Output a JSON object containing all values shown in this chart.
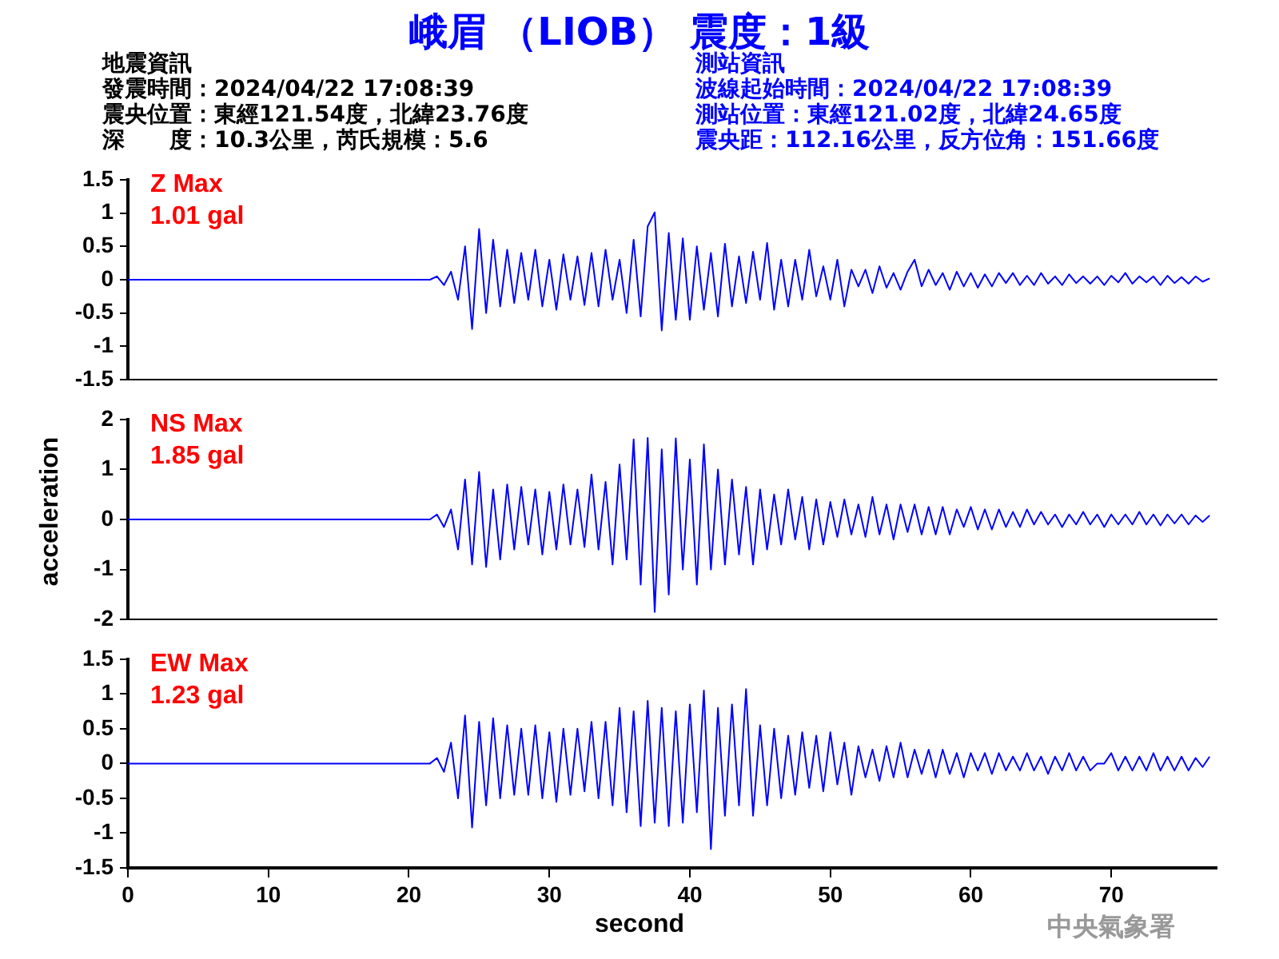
{
  "chart_data": [
    {
      "type": "line",
      "title": "峨眉 （LIOB） 震度：1級",
      "annotations": [
        "地震資訊",
        "發震時間：2024/04/22 17:08:39",
        "震央位置：東經121.54度，北緯23.76度",
        "深　　度：10.3公里，芮氏規模：5.6",
        "測站資訊",
        "波線起始時間：2024/04/22 17:08:39",
        "測站位置：東經121.02度，北緯24.65度",
        "震央距：112.16公里，反方位角：151.66度",
        "Z Max",
        "1.01 gal"
      ],
      "x": [
        0,
        21.5,
        22,
        22.5,
        23,
        23.5,
        24,
        24.5,
        25,
        25.5,
        26,
        26.5,
        27,
        27.5,
        28,
        28.5,
        29,
        29.5,
        30,
        30.5,
        31,
        31.5,
        32,
        32.5,
        33,
        33.5,
        34,
        34.5,
        35,
        35.5,
        36,
        36.5,
        37,
        37.5,
        38,
        38.5,
        39,
        39.5,
        40,
        40.5,
        41,
        41.5,
        42,
        42.5,
        43,
        43.5,
        44,
        44.5,
        45,
        45.5,
        46,
        46.5,
        47,
        47.5,
        48,
        48.5,
        49,
        49.5,
        50,
        50.5,
        51,
        51.5,
        52,
        52.5,
        53,
        53.5,
        54,
        54.5,
        55,
        55.5,
        56,
        56.5,
        57,
        57.5,
        58,
        58.5,
        59,
        59.5,
        60,
        60.5,
        61,
        61.5,
        62,
        62.5,
        63,
        63.5,
        64,
        64.5,
        65,
        65.5,
        66,
        66.5,
        67,
        67.5,
        68,
        68.5,
        69,
        69.5,
        70,
        70.5,
        71,
        71.5,
        72,
        72.5,
        73,
        73.5,
        74,
        74.5,
        75,
        75.5,
        76,
        76.5,
        77
      ],
      "values": [
        0,
        0,
        0.05,
        -0.08,
        0.12,
        -0.3,
        0.5,
        -0.74,
        0.76,
        -0.5,
        0.6,
        -0.4,
        0.45,
        -0.35,
        0.4,
        -0.3,
        0.45,
        -0.4,
        0.3,
        -0.45,
        0.38,
        -0.3,
        0.35,
        -0.38,
        0.4,
        -0.4,
        0.45,
        -0.3,
        0.3,
        -0.5,
        0.6,
        -0.55,
        0.8,
        1.01,
        -0.76,
        0.7,
        -0.6,
        0.62,
        -0.6,
        0.5,
        -0.45,
        0.4,
        -0.55,
        0.54,
        -0.4,
        0.35,
        -0.35,
        0.42,
        -0.3,
        0.55,
        -0.45,
        0.3,
        -0.4,
        0.3,
        -0.3,
        0.45,
        -0.25,
        0.2,
        -0.3,
        0.3,
        -0.4,
        0.15,
        -0.1,
        0.15,
        -0.2,
        0.2,
        -0.12,
        0.1,
        -0.15,
        0.12,
        0.3,
        -0.1,
        0.15,
        -0.08,
        0.1,
        -0.15,
        0.12,
        -0.1,
        0.1,
        -0.12,
        0.08,
        -0.1,
        0.1,
        -0.05,
        0.1,
        -0.08,
        0.06,
        -0.08,
        0.1,
        -0.06,
        0.05,
        -0.08,
        0.08,
        -0.05,
        0.05,
        -0.06,
        0.05,
        -0.08,
        0.06,
        -0.04,
        0.1,
        -0.06,
        0.05,
        -0.04,
        0.05,
        -0.08,
        0.06,
        -0.05,
        0.04,
        -0.06,
        0.05,
        -0.03,
        0.02
      ],
      "color": "#0000ff",
      "xlim": [
        0,
        77.5
      ],
      "xticks": [
        0,
        10,
        20,
        30,
        40,
        50,
        60,
        70
      ],
      "ylim": [
        -1.5,
        1.5
      ],
      "yticks": [
        -1.5,
        -1,
        -0.5,
        0,
        0.5,
        1,
        1.5
      ],
      "tick_labels": "y"
    },
    {
      "type": "line",
      "ylabel": "acceleration",
      "annotations": [
        "NS Max",
        "1.85 gal"
      ],
      "x": [
        0,
        21.5,
        22,
        22.5,
        23,
        23.5,
        24,
        24.5,
        25,
        25.5,
        26,
        26.5,
        27,
        27.5,
        28,
        28.5,
        29,
        29.5,
        30,
        30.5,
        31,
        31.5,
        32,
        32.5,
        33,
        33.5,
        34,
        34.5,
        35,
        35.5,
        36,
        36.5,
        37,
        37.5,
        38,
        38.5,
        39,
        39.5,
        40,
        40.5,
        41,
        41.5,
        42,
        42.5,
        43,
        43.5,
        44,
        44.5,
        45,
        45.5,
        46,
        46.5,
        47,
        47.5,
        48,
        48.5,
        49,
        49.5,
        50,
        50.5,
        51,
        51.5,
        52,
        52.5,
        53,
        53.5,
        54,
        54.5,
        55,
        55.5,
        56,
        56.5,
        57,
        57.5,
        58,
        58.5,
        59,
        59.5,
        60,
        60.5,
        61,
        61.5,
        62,
        62.5,
        63,
        63.5,
        64,
        64.5,
        65,
        65.5,
        66,
        66.5,
        67,
        67.5,
        68,
        68.5,
        69,
        69.5,
        70,
        70.5,
        71,
        71.5,
        72,
        72.5,
        73,
        73.5,
        74,
        74.5,
        75,
        75.5,
        76,
        76.5,
        77
      ],
      "values": [
        0,
        0,
        0.1,
        -0.15,
        0.2,
        -0.6,
        0.8,
        -0.9,
        0.95,
        -0.95,
        0.6,
        -0.8,
        0.7,
        -0.6,
        0.65,
        -0.5,
        0.6,
        -0.7,
        0.55,
        -0.6,
        0.7,
        -0.5,
        0.6,
        -0.55,
        0.9,
        -0.6,
        0.75,
        -0.9,
        1.1,
        -0.8,
        1.6,
        -1.3,
        1.63,
        -1.85,
        1.4,
        -1.5,
        1.62,
        -1,
        1.2,
        -1.3,
        1.5,
        -1,
        1,
        -0.9,
        0.8,
        -0.7,
        0.65,
        -0.9,
        0.6,
        -0.6,
        0.5,
        -0.5,
        0.6,
        -0.4,
        0.45,
        -0.6,
        0.4,
        -0.5,
        0.35,
        -0.35,
        0.4,
        -0.3,
        0.3,
        -0.35,
        0.45,
        -0.3,
        0.3,
        -0.4,
        0.3,
        -0.25,
        0.3,
        -0.3,
        0.25,
        -0.3,
        0.25,
        -0.3,
        0.2,
        -0.15,
        0.25,
        -0.2,
        0.2,
        -0.2,
        0.2,
        -0.15,
        0.15,
        -0.15,
        0.2,
        -0.1,
        0.15,
        -0.1,
        0.1,
        -0.15,
        0.1,
        -0.1,
        0.15,
        -0.1,
        0.1,
        -0.15,
        0.1,
        -0.1,
        0.1,
        -0.1,
        0.15,
        -0.1,
        0.1,
        -0.12,
        0.1,
        -0.08,
        0.1,
        -0.1,
        0.08,
        -0.05,
        0.08
      ],
      "color": "#0000ff",
      "xlim": [
        0,
        77.5
      ],
      "xticks": [
        0,
        10,
        20,
        30,
        40,
        50,
        60,
        70
      ],
      "ylim": [
        -2,
        2
      ],
      "yticks": [
        -2,
        -1,
        0,
        1,
        2
      ],
      "tick_labels": "y"
    },
    {
      "type": "line",
      "xlabel": "second",
      "annotations": [
        "EW Max",
        "1.23 gal",
        "中央氣象署"
      ],
      "x": [
        0,
        21.5,
        22,
        22.5,
        23,
        23.5,
        24,
        24.5,
        25,
        25.5,
        26,
        26.5,
        27,
        27.5,
        28,
        28.5,
        29,
        29.5,
        30,
        30.5,
        31,
        31.5,
        32,
        32.5,
        33,
        33.5,
        34,
        34.5,
        35,
        35.5,
        36,
        36.5,
        37,
        37.5,
        38,
        38.5,
        39,
        39.5,
        40,
        40.5,
        41,
        41.5,
        42,
        42.5,
        43,
        43.5,
        44,
        44.5,
        45,
        45.5,
        46,
        46.5,
        47,
        47.5,
        48,
        48.5,
        49,
        49.5,
        50,
        50.5,
        51,
        51.5,
        52,
        52.5,
        53,
        53.5,
        54,
        54.5,
        55,
        55.5,
        56,
        56.5,
        57,
        57.5,
        58,
        58.5,
        59,
        59.5,
        60,
        60.5,
        61,
        61.5,
        62,
        62.5,
        63,
        63.5,
        64,
        64.5,
        65,
        65.5,
        66,
        66.5,
        67,
        67.5,
        68,
        68.5,
        69,
        69.5,
        70,
        70.5,
        71,
        71.5,
        72,
        72.5,
        73,
        73.5,
        74,
        74.5,
        75,
        75.5,
        76,
        76.5,
        77
      ],
      "values": [
        0,
        0,
        0.08,
        -0.12,
        0.3,
        -0.5,
        0.69,
        -0.92,
        0.6,
        -0.6,
        0.65,
        -0.5,
        0.55,
        -0.45,
        0.5,
        -0.45,
        0.55,
        -0.5,
        0.45,
        -0.55,
        0.5,
        -0.45,
        0.5,
        -0.4,
        0.6,
        -0.5,
        0.6,
        -0.6,
        0.8,
        -0.7,
        0.75,
        -0.9,
        0.9,
        -0.85,
        0.8,
        -0.9,
        0.75,
        -0.85,
        0.85,
        -0.7,
        1.05,
        -1.23,
        0.8,
        -0.75,
        0.85,
        -0.6,
        1.07,
        -0.75,
        0.55,
        -0.6,
        0.5,
        -0.5,
        0.4,
        -0.45,
        0.45,
        -0.35,
        0.4,
        -0.4,
        0.45,
        -0.3,
        0.3,
        -0.45,
        0.25,
        -0.2,
        0.2,
        -0.25,
        0.25,
        -0.2,
        0.3,
        -0.2,
        0.2,
        -0.15,
        0.2,
        -0.2,
        0.2,
        -0.15,
        0.15,
        -0.2,
        0.15,
        -0.1,
        0.15,
        -0.15,
        0.15,
        -0.1,
        0.1,
        -0.1,
        0.15,
        -0.1,
        0.1,
        -0.15,
        0.1,
        -0.1,
        0.15,
        -0.1,
        0.1,
        -0.1,
        0,
        0,
        0.15,
        -0.1,
        0.1,
        -0.1,
        0.1,
        -0.1,
        0.15,
        -0.1,
        0.1,
        -0.1,
        0.1,
        -0.1,
        0.08,
        -0.05,
        0.1
      ],
      "color": "#0000ff",
      "xlim": [
        0,
        77.5
      ],
      "xticks": [
        0,
        10,
        20,
        30,
        40,
        50,
        60,
        70
      ],
      "ylim": [
        -1.5,
        1.5
      ],
      "yticks": [
        -1.5,
        -1,
        -0.5,
        0,
        0.5,
        1,
        1.5
      ]
    }
  ]
}
